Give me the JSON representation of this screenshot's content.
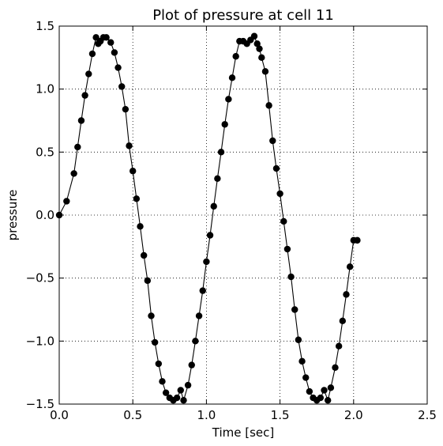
{
  "chart_data": {
    "type": "line",
    "title": "Plot of pressure at cell 11",
    "xlabel": "Time [sec]",
    "ylabel": "pressure",
    "xlim": [
      0.0,
      2.5
    ],
    "ylim": [
      -1.5,
      1.5
    ],
    "xticks": [
      0.0,
      0.5,
      1.0,
      1.5,
      2.0,
      2.5
    ],
    "xtick_labels": [
      "0.0",
      "0.5",
      "1.0",
      "1.5",
      "2.0",
      "2.5"
    ],
    "yticks": [
      -1.5,
      -1.0,
      -0.5,
      0.0,
      0.5,
      1.0,
      1.5
    ],
    "ytick_labels": [
      "−1.5",
      "−1.0",
      "−0.5",
      "0.0",
      "0.5",
      "1.0",
      "1.5"
    ],
    "grid": true,
    "marker": "circle",
    "line_color": "#000000",
    "marker_color": "#000000",
    "series": [
      {
        "x": [
          0.0,
          0.05,
          0.1,
          0.125,
          0.15,
          0.175,
          0.2,
          0.225,
          0.25,
          0.265,
          0.28,
          0.3,
          0.32,
          0.35,
          0.375,
          0.4,
          0.425,
          0.45,
          0.475,
          0.5,
          0.525,
          0.55,
          0.575,
          0.6,
          0.625,
          0.65,
          0.675,
          0.7,
          0.725,
          0.75,
          0.775,
          0.8,
          0.825,
          0.845,
          0.875,
          0.9,
          0.925,
          0.95,
          0.975,
          1.0,
          1.025,
          1.05,
          1.075,
          1.1,
          1.125,
          1.15,
          1.175,
          1.2,
          1.225,
          1.25,
          1.275,
          1.3,
          1.325,
          1.345,
          1.36,
          1.375,
          1.4,
          1.425,
          1.45,
          1.475,
          1.5,
          1.525,
          1.55,
          1.575,
          1.6,
          1.625,
          1.65,
          1.675,
          1.7,
          1.725,
          1.75,
          1.775,
          1.8,
          1.825,
          1.845,
          1.875,
          1.9,
          1.925,
          1.95,
          1.975,
          2.0,
          2.025
        ],
        "y": [
          0.0,
          0.11,
          0.33,
          0.54,
          0.75,
          0.95,
          1.12,
          1.28,
          1.41,
          1.36,
          1.38,
          1.41,
          1.41,
          1.37,
          1.29,
          1.17,
          1.02,
          0.84,
          0.55,
          0.35,
          0.13,
          -0.09,
          -0.32,
          -0.52,
          -0.8,
          -1.01,
          -1.18,
          -1.32,
          -1.41,
          -1.45,
          -1.47,
          -1.45,
          -1.39,
          -1.47,
          -1.35,
          -1.19,
          -1.0,
          -0.8,
          -0.6,
          -0.37,
          -0.16,
          0.07,
          0.29,
          0.5,
          0.72,
          0.92,
          1.09,
          1.26,
          1.38,
          1.38,
          1.36,
          1.39,
          1.42,
          1.36,
          1.32,
          1.25,
          1.14,
          0.87,
          0.59,
          0.37,
          0.17,
          -0.05,
          -0.27,
          -0.49,
          -0.75,
          -0.99,
          -1.16,
          -1.29,
          -1.4,
          -1.45,
          -1.47,
          -1.45,
          -1.39,
          -1.47,
          -1.37,
          -1.21,
          -1.04,
          -0.84,
          -0.63,
          -0.41,
          -0.2,
          -0.2
        ]
      }
    ]
  }
}
